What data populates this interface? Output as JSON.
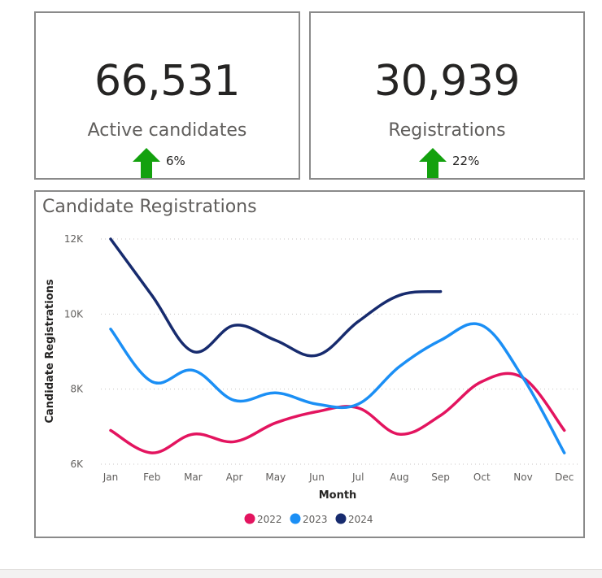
{
  "kpis": {
    "active": {
      "value": "66,531",
      "label": "Active candidates",
      "trend_pct": "6%",
      "trend_icon": "arrow-up-icon"
    },
    "registrations": {
      "value": "30,939",
      "label": "Registrations",
      "trend_pct": "22%",
      "trend_icon": "arrow-up-icon"
    }
  },
  "colors": {
    "trend_up": "#13a10e",
    "series_2022": "#e3145f",
    "series_2023": "#1b8ff5",
    "series_2024": "#172b6e",
    "gridline": "#c8c6c4",
    "border": "#8a8a8a"
  },
  "chart_data": {
    "type": "line",
    "title": "Candidate Registrations",
    "xlabel": "Month",
    "ylabel": "Candidate Registrations",
    "x": [
      "Jan",
      "Feb",
      "Mar",
      "Apr",
      "May",
      "Jun",
      "Jul",
      "Aug",
      "Sep",
      "Oct",
      "Nov",
      "Dec"
    ],
    "ylim": [
      6000,
      12000
    ],
    "yticks": [
      {
        "value": 6000,
        "label": "6K"
      },
      {
        "value": 8000,
        "label": "8K"
      },
      {
        "value": 10000,
        "label": "10K"
      },
      {
        "value": 12000,
        "label": "12K"
      }
    ],
    "grid": true,
    "smooth": true,
    "legend": "bottom-center",
    "series": [
      {
        "name": "2022",
        "values": [
          6900,
          6300,
          6800,
          6600,
          7100,
          7400,
          7500,
          6800,
          7300,
          8200,
          8300,
          6900
        ]
      },
      {
        "name": "2023",
        "values": [
          9600,
          8200,
          8500,
          7700,
          7900,
          7600,
          7600,
          8600,
          9300,
          9700,
          8300,
          6300
        ]
      },
      {
        "name": "2024",
        "values": [
          12000,
          10500,
          9000,
          9700,
          9300,
          8900,
          9800,
          10500,
          10600,
          null,
          null,
          null
        ]
      }
    ]
  }
}
